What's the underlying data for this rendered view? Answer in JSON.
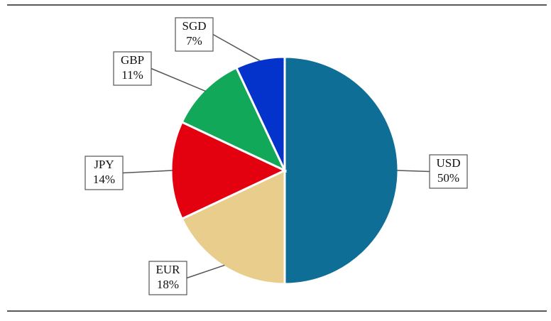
{
  "chart_data": {
    "type": "pie",
    "categories": [
      "USD",
      "EUR",
      "JPY",
      "GBP",
      "SGD"
    ],
    "values": [
      50,
      18,
      14,
      11,
      7
    ],
    "value_labels": [
      "50%",
      "18%",
      "14%",
      "11%",
      "7%"
    ],
    "colors": [
      "#0e6e96",
      "#e8cd8c",
      "#e3000f",
      "#12a85a",
      "#0433cc"
    ]
  }
}
